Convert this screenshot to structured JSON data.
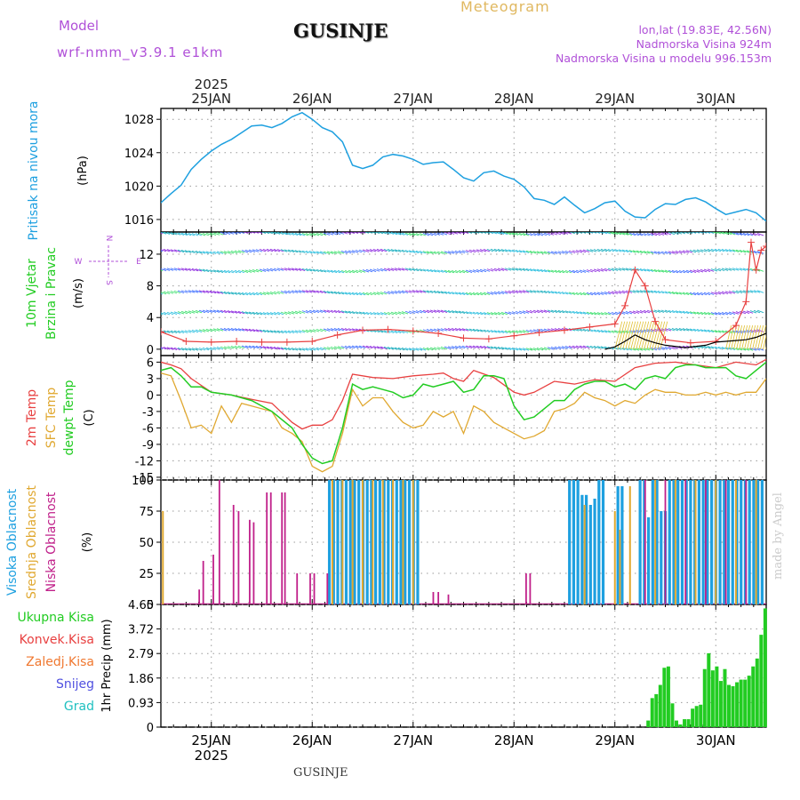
{
  "header": {
    "model_label": "Model",
    "model_version": "wrf-nmm_v3.9.1  e1km",
    "title": "GUSINJE",
    "meteogram_label": "Meteogram",
    "coords": "lon,lat (19.83E, 42.56N)",
    "altitude": "Nadmorska Visina 924m",
    "model_altitude": "Nadmorska Visina u modelu 996.153m"
  },
  "footer": {
    "station": "GUSINJE",
    "credit": "made by Angel"
  },
  "colors": {
    "pressure": "#1ea0e0",
    "temp2m": "#e84040",
    "sfc": "#e0a830",
    "dewpt": "#22cc22",
    "high_cloud": "#1ea0e0",
    "mid_cloud": "#e0a830",
    "low_cloud": "#c0208a",
    "precip": "#22cc22",
    "label_purple": "#b050d8"
  },
  "chart_data": [
    {
      "type": "line",
      "id": "pressure",
      "ylabel_main": "Pritisak na nivou mora",
      "unit": "(hPa)",
      "ylim": [
        1014.5,
        1029.3
      ],
      "yticks": [
        "1016",
        "1020",
        "1024",
        "1028"
      ],
      "grid": true,
      "x_days": [
        24.5,
        30.5
      ],
      "series": [
        {
          "x": [
            24.5,
            24.6,
            24.7,
            24.8,
            24.9,
            25.0,
            25.1,
            25.2,
            25.3,
            25.4,
            25.5,
            25.6,
            25.7,
            25.8,
            25.9,
            26.0,
            26.1,
            26.2,
            26.3,
            26.4,
            26.5,
            26.6,
            26.7,
            26.8,
            26.9,
            27.0,
            27.1,
            27.2,
            27.3,
            27.4,
            27.5,
            27.6,
            27.7,
            27.8,
            27.9,
            28.0,
            28.1,
            28.2,
            28.3,
            28.4,
            28.5,
            28.6,
            28.7,
            28.8,
            28.9,
            29.0,
            29.1,
            29.2,
            29.3,
            29.4,
            29.5,
            29.6,
            29.7,
            29.8,
            29.9,
            30.0,
            30.1,
            30.2,
            30.3,
            30.4,
            30.5
          ],
          "y": [
            1018.0,
            1019.1,
            1020.1,
            1022.0,
            1023.2,
            1024.2,
            1025.0,
            1025.6,
            1026.4,
            1027.2,
            1027.3,
            1027.0,
            1027.5,
            1028.3,
            1028.8,
            1028.0,
            1027.0,
            1026.5,
            1025.3,
            1022.5,
            1022.1,
            1022.5,
            1023.5,
            1023.8,
            1023.6,
            1023.2,
            1022.6,
            1022.8,
            1022.9,
            1022.0,
            1021.0,
            1020.6,
            1021.6,
            1021.8,
            1021.2,
            1020.8,
            1019.9,
            1018.5,
            1018.3,
            1017.8,
            1018.7,
            1017.7,
            1016.8,
            1017.3,
            1018.0,
            1018.2,
            1017.0,
            1016.3,
            1016.2,
            1017.2,
            1017.9,
            1017.8,
            1018.4,
            1018.6,
            1018.1,
            1017.3,
            1016.6,
            1016.9,
            1017.2,
            1016.8,
            1015.8
          ]
        }
      ]
    },
    {
      "type": "line",
      "id": "wind",
      "ylabel_main": "10m Vjetar",
      "ylabel_sub": "Brzina i Pravac",
      "unit": "(m/s)",
      "compass": {
        "n": "N",
        "w": "W",
        "e": "E",
        "s": "S"
      },
      "ylim": [
        -0.8,
        14.8
      ],
      "yticks": [
        "0",
        "4",
        "8",
        "12"
      ],
      "grid": true,
      "x_days": [
        24.5,
        30.5
      ],
      "series": [
        {
          "name": "speed",
          "x": [
            24.5,
            24.75,
            25.0,
            25.25,
            25.5,
            25.75,
            26.0,
            26.25,
            26.5,
            26.75,
            27.0,
            27.25,
            27.5,
            27.75,
            28.0,
            28.25,
            28.5,
            28.75,
            29.0,
            29.1,
            29.2,
            29.3,
            29.4,
            29.5,
            29.75,
            30.0,
            30.2,
            30.3,
            30.35,
            30.4,
            30.45,
            30.5
          ],
          "y": [
            2.2,
            1.0,
            0.9,
            1.0,
            0.9,
            0.9,
            1.0,
            1.8,
            2.4,
            2.5,
            2.3,
            2.0,
            1.4,
            1.3,
            1.7,
            2.1,
            2.4,
            2.8,
            3.2,
            5.5,
            10.0,
            8.0,
            3.5,
            1.2,
            0.8,
            1.0,
            3.0,
            6.0,
            13.5,
            10.0,
            12.5,
            13.0
          ]
        },
        {
          "name": "gust",
          "x": [
            28.9,
            29.0,
            29.1,
            29.2,
            29.3,
            29.4,
            29.5,
            29.7,
            29.9,
            30.0,
            30.1,
            30.2,
            30.3,
            30.4,
            30.5
          ],
          "y": [
            0,
            0.3,
            1.0,
            1.8,
            1.2,
            0.8,
            0.5,
            0.2,
            0.5,
            0.9,
            1.0,
            1.1,
            1.2,
            1.5,
            2.0
          ]
        }
      ]
    },
    {
      "type": "line",
      "id": "temperature",
      "ylabel_parts": [
        "2m Temp",
        "SFC Temp",
        "dewpt Temp"
      ],
      "unit": "(C)",
      "ylim": [
        -15.5,
        7.2
      ],
      "yticks": [
        "-15",
        "-12",
        "-9",
        "-6",
        "-3",
        "0",
        "3",
        "6"
      ],
      "grid": true,
      "x_days": [
        24.5,
        30.5
      ],
      "series": [
        {
          "name": "2m",
          "x": [
            24.5,
            24.6,
            24.7,
            24.8,
            25.0,
            25.2,
            25.4,
            25.6,
            25.8,
            25.9,
            26.0,
            26.1,
            26.2,
            26.3,
            26.4,
            26.6,
            26.8,
            27.0,
            27.2,
            27.3,
            27.4,
            27.5,
            27.6,
            27.8,
            28.0,
            28.1,
            28.2,
            28.4,
            28.6,
            28.8,
            29.0,
            29.2,
            29.4,
            29.6,
            29.8,
            30.0,
            30.2,
            30.4,
            30.5
          ],
          "y": [
            6.0,
            5.5,
            4.8,
            3.0,
            0.5,
            0.0,
            -0.8,
            -1.5,
            -5.0,
            -6.2,
            -5.5,
            -5.5,
            -4.5,
            -1.0,
            3.8,
            3.2,
            3.0,
            3.5,
            3.8,
            4.0,
            3.0,
            2.5,
            4.5,
            3.2,
            0.5,
            0.0,
            0.5,
            2.5,
            2.0,
            2.8,
            2.5,
            5.0,
            5.8,
            6.0,
            5.5,
            5.0,
            6.0,
            5.5,
            6.5
          ]
        },
        {
          "name": "SFC",
          "x": [
            24.5,
            24.6,
            24.7,
            24.8,
            24.9,
            25.0,
            25.1,
            25.2,
            25.3,
            25.4,
            25.6,
            25.7,
            25.8,
            25.9,
            26.0,
            26.1,
            26.2,
            26.3,
            26.4,
            26.5,
            26.6,
            26.7,
            26.8,
            26.9,
            27.0,
            27.1,
            27.2,
            27.3,
            27.4,
            27.5,
            27.6,
            27.7,
            27.8,
            27.9,
            28.0,
            28.1,
            28.2,
            28.3,
            28.4,
            28.5,
            28.6,
            28.7,
            28.8,
            28.9,
            29.0,
            29.1,
            29.2,
            29.3,
            29.4,
            29.5,
            29.6,
            29.7,
            29.8,
            29.9,
            30.0,
            30.1,
            30.2,
            30.3,
            30.4,
            30.5
          ],
          "y": [
            4.0,
            3.5,
            -1.0,
            -6.0,
            -5.5,
            -7.0,
            -2.0,
            -5.0,
            -1.5,
            -2.0,
            -3.0,
            -6.0,
            -7.0,
            -8.5,
            -13.0,
            -14.0,
            -13.0,
            -7.0,
            1.0,
            -2.0,
            -0.5,
            -0.5,
            -3.0,
            -5.0,
            -6.0,
            -5.5,
            -3.0,
            -4.0,
            -3.0,
            -7.0,
            -2.0,
            -3.0,
            -5.0,
            -6.0,
            -7.0,
            -8.0,
            -7.5,
            -6.5,
            -3.0,
            -2.5,
            -1.5,
            0.5,
            -0.5,
            -1.0,
            -2.0,
            -1.0,
            -1.5,
            0.0,
            1.0,
            0.5,
            0.5,
            0.0,
            0.0,
            0.5,
            0.0,
            0.5,
            0.0,
            0.5,
            0.5,
            3.0
          ]
        },
        {
          "name": "dewpt",
          "x": [
            24.5,
            24.6,
            24.7,
            24.8,
            24.9,
            25.0,
            25.2,
            25.4,
            25.6,
            25.8,
            25.9,
            26.0,
            26.1,
            26.2,
            26.3,
            26.4,
            26.5,
            26.6,
            26.7,
            26.8,
            26.9,
            27.0,
            27.1,
            27.2,
            27.3,
            27.4,
            27.5,
            27.6,
            27.7,
            27.8,
            27.9,
            28.0,
            28.1,
            28.2,
            28.3,
            28.4,
            28.5,
            28.6,
            28.7,
            28.8,
            28.9,
            29.0,
            29.1,
            29.2,
            29.3,
            29.4,
            29.5,
            29.6,
            29.7,
            29.8,
            29.9,
            30.0,
            30.1,
            30.2,
            30.3,
            30.4,
            30.5
          ],
          "y": [
            4.5,
            5.0,
            3.5,
            1.5,
            1.5,
            0.5,
            0.0,
            -1.0,
            -3.0,
            -6.0,
            -9.0,
            -11.5,
            -12.5,
            -12.0,
            -6.0,
            2.0,
            1.0,
            1.5,
            1.0,
            0.5,
            -0.5,
            0.0,
            2.0,
            1.5,
            2.0,
            2.5,
            0.5,
            1.0,
            3.5,
            3.5,
            3.0,
            -2.0,
            -4.5,
            -4.0,
            -2.5,
            -1.0,
            -1.0,
            1.0,
            2.0,
            2.5,
            2.5,
            1.5,
            2.0,
            1.0,
            3.0,
            3.5,
            3.0,
            5.0,
            5.5,
            5.5,
            5.0,
            5.0,
            5.0,
            3.5,
            3.0,
            4.5,
            6.0
          ]
        }
      ]
    },
    {
      "type": "bar",
      "id": "clouds",
      "ylabel_parts": [
        "Visoka Oblacnost",
        "Srednja Oblacnost",
        "Niska Oblacnost"
      ],
      "unit": "(%)",
      "ylim": [
        0,
        100
      ],
      "yticks": [
        "0",
        "25",
        "50",
        "75",
        "100"
      ],
      "grid": true,
      "x_days": [
        24.5,
        30.5
      ],
      "high_ranges": [
        [
          26.17,
          27.05,
          100
        ],
        [
          28.55,
          28.92,
          100
        ],
        [
          29.03,
          29.08,
          95
        ],
        [
          29.25,
          30.5,
          100
        ]
      ],
      "high_dips": [
        [
          28.7,
          88
        ],
        [
          28.75,
          80
        ],
        [
          28.8,
          85
        ],
        [
          29.35,
          70
        ],
        [
          29.48,
          75
        ]
      ],
      "mid_spikes": [
        [
          24.52,
          75
        ],
        [
          26.2,
          100
        ],
        [
          26.3,
          100
        ],
        [
          26.4,
          100
        ],
        [
          26.5,
          100
        ],
        [
          26.6,
          100
        ],
        [
          26.7,
          100
        ],
        [
          26.8,
          100
        ],
        [
          26.9,
          100
        ],
        [
          27.0,
          100
        ],
        [
          28.7,
          80
        ],
        [
          29.0,
          75
        ],
        [
          29.05,
          60
        ],
        [
          29.15,
          95
        ],
        [
          29.4,
          100
        ],
        [
          29.6,
          100
        ],
        [
          29.8,
          100
        ],
        [
          30.0,
          100
        ],
        [
          30.2,
          100
        ],
        [
          30.4,
          100
        ]
      ],
      "low_spikes": [
        [
          24.88,
          12
        ],
        [
          24.92,
          35
        ],
        [
          25.02,
          40
        ],
        [
          25.08,
          100
        ],
        [
          25.22,
          80
        ],
        [
          25.27,
          75
        ],
        [
          25.38,
          68
        ],
        [
          25.42,
          66
        ],
        [
          25.55,
          90
        ],
        [
          25.59,
          90
        ],
        [
          25.7,
          90
        ],
        [
          25.73,
          90
        ],
        [
          25.85,
          25
        ],
        [
          25.98,
          25
        ],
        [
          26.02,
          25
        ],
        [
          26.15,
          25
        ],
        [
          27.2,
          10
        ],
        [
          27.25,
          10
        ],
        [
          27.35,
          8
        ],
        [
          28.12,
          25
        ],
        [
          28.16,
          25
        ],
        [
          29.3,
          100
        ],
        [
          29.5,
          100
        ],
        [
          29.7,
          100
        ],
        [
          29.9,
          100
        ],
        [
          30.1,
          100
        ],
        [
          30.3,
          100
        ]
      ]
    },
    {
      "type": "bar",
      "id": "precip",
      "ylabel_parts": [
        "Ukupna Kisa",
        "Konvek.Kisa",
        "Zaledj.Kisa",
        "Snijeg",
        "Grad"
      ],
      "unit": "1hr Precip (mm)",
      "ylim": [
        0,
        4.65
      ],
      "yticks": [
        "0",
        "0.93",
        "1.86",
        "2.79",
        "3.72",
        "4.65"
      ],
      "grid": true,
      "x_days": [
        24.5,
        30.5
      ],
      "x": [
        29.33,
        29.37,
        29.41,
        29.45,
        29.49,
        29.53,
        29.57,
        29.61,
        29.65,
        29.69,
        29.73,
        29.77,
        29.81,
        29.85,
        29.89,
        29.93,
        29.97,
        30.01,
        30.05,
        30.09,
        30.13,
        30.17,
        30.21,
        30.25,
        30.29,
        30.33,
        30.37,
        30.41,
        30.45,
        30.49
      ],
      "values": [
        0.25,
        1.1,
        1.25,
        1.6,
        2.25,
        2.3,
        0.9,
        0.25,
        0.1,
        0.3,
        0.3,
        0.7,
        0.8,
        0.85,
        2.2,
        2.8,
        2.15,
        2.3,
        1.75,
        2.2,
        1.6,
        1.55,
        1.7,
        1.8,
        1.8,
        1.95,
        2.3,
        2.6,
        3.5,
        4.5
      ]
    }
  ],
  "time_axis": {
    "year_top": "2025",
    "year_bottom": "2025",
    "day_labels": [
      "25JAN",
      "26JAN",
      "27JAN",
      "28JAN",
      "29JAN",
      "30JAN"
    ],
    "day_values": [
      25,
      26,
      27,
      28,
      29,
      30
    ]
  }
}
